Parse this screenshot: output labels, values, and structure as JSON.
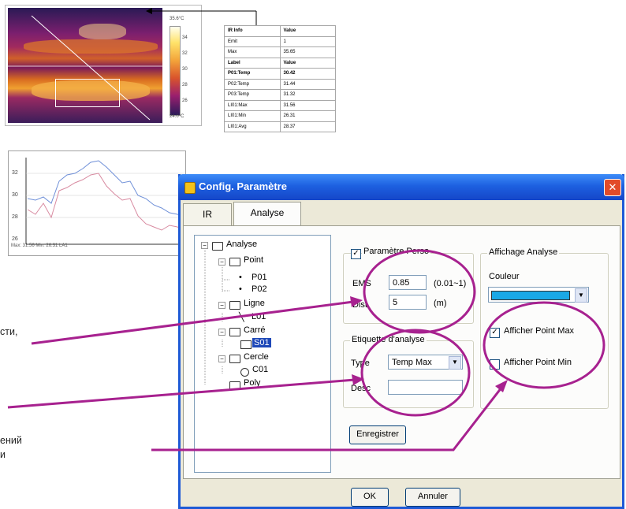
{
  "thermal": {
    "scale_top": "35.6°C",
    "scale_bottom": "24.0°C",
    "ticks": [
      "34",
      "32",
      "30",
      "28",
      "26"
    ]
  },
  "table": {
    "rows": [
      {
        "name": "IR Info",
        "value": "Value",
        "bold": true
      },
      {
        "name": "Emit",
        "value": "1",
        "bold": false
      },
      {
        "name": "Max",
        "value": "35.65",
        "bold": false
      },
      {
        "name": "Label",
        "value": "Value",
        "bold": true
      },
      {
        "name": "P01:Temp",
        "value": "30.42",
        "bold": true
      },
      {
        "name": "P02:Temp",
        "value": "31.44",
        "bold": false
      },
      {
        "name": "P03:Temp",
        "value": "31.32",
        "bold": false
      },
      {
        "name": "LI01:Max",
        "value": "31.56",
        "bold": false
      },
      {
        "name": "LI01:Min",
        "value": "26.31",
        "bold": false
      },
      {
        "name": "LI01:Avg",
        "value": "28.37",
        "bold": false
      }
    ]
  },
  "graph": {
    "y_ticks": [
      "32",
      "30",
      "28",
      "26"
    ],
    "footer": "Max: 31.56     Min: 26.31     LA1"
  },
  "dialog": {
    "title": "Config. Paramètre",
    "tabs": {
      "ir": "IR",
      "analyse": "Analyse"
    },
    "tree": {
      "analyse": "Analyse",
      "point": "Point",
      "p01": "P01",
      "p02": "P02",
      "ligne": "Ligne",
      "l01": "L01",
      "carre": "Carré",
      "s01": "S01",
      "cercle": "Cercle",
      "c01": "C01",
      "poly": "Poly"
    },
    "param_group": {
      "legend": "Paramètre Perso",
      "checked": true,
      "ems_label": "EMS",
      "ems_value": "0.85",
      "ems_range": "(0.01~1)",
      "dist_label": "Dist",
      "dist_value": "5",
      "dist_unit": "(m)"
    },
    "etiq_group": {
      "legend": "Etiquette d'analyse",
      "type_label": "Type",
      "type_value": "Temp Max",
      "desc_label": "Desc",
      "desc_value": ""
    },
    "affichage_group": {
      "legend": "Affichage Analyse",
      "couleur_label": "Couleur",
      "color": "#1aa8e6",
      "show_max_label": "Afficher Point Max",
      "show_max_checked": true,
      "show_min_label": "Afficher Point Min",
      "show_min_checked": false
    },
    "save_label": "Enregistrer",
    "ok_label": "OK",
    "cancel_label": "Annuler"
  },
  "annotations": {
    "line1": "сти,",
    "line2": "ений",
    "line3": "и",
    "color": "#a7218f"
  }
}
